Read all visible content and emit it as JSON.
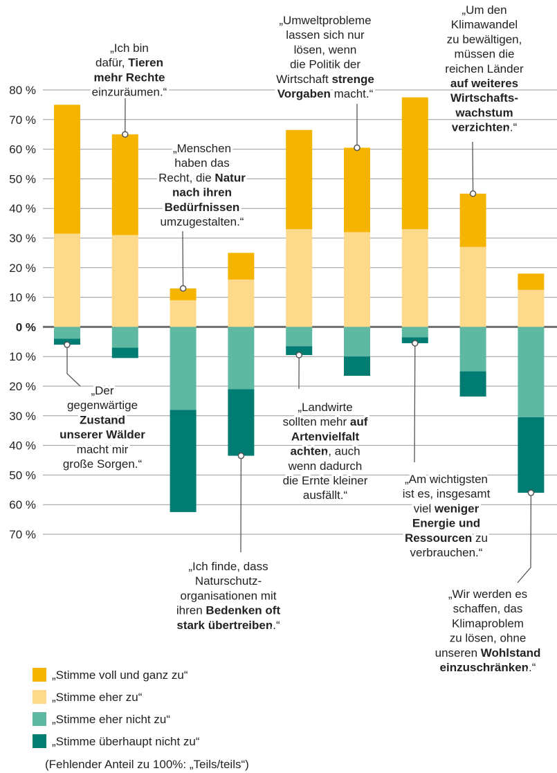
{
  "chart_data": {
    "type": "diverging-stacked-bar",
    "ylim": [
      -70,
      80
    ],
    "yticks": [
      {
        "value": 80,
        "label": "80 %"
      },
      {
        "value": 70,
        "label": "70 %"
      },
      {
        "value": 60,
        "label": "60 %"
      },
      {
        "value": 50,
        "label": "50 %"
      },
      {
        "value": 40,
        "label": "40 %"
      },
      {
        "value": 30,
        "label": "30 %"
      },
      {
        "value": 20,
        "label": "20 %"
      },
      {
        "value": 10,
        "label": "10 %"
      },
      {
        "value": 0,
        "label": "0 %"
      },
      {
        "value": -10,
        "label": "10 %"
      },
      {
        "value": -20,
        "label": "20 %"
      },
      {
        "value": -30,
        "label": "30 %"
      },
      {
        "value": -40,
        "label": "40 %"
      },
      {
        "value": -50,
        "label": "50 %"
      },
      {
        "value": -60,
        "label": "60 %"
      },
      {
        "value": -70,
        "label": "70 %"
      }
    ],
    "grid": true,
    "categories": [
      [
        [
          "„Der"
        ],
        [
          "gegenwärtige"
        ],
        [
          {
            "text": "Zustand",
            "bold": true
          }
        ],
        [
          {
            "text": "unserer Wälder",
            "bold": true
          }
        ],
        [
          "macht mir"
        ],
        [
          "große Sorgen.“"
        ]
      ],
      [
        [
          "„Ich bin"
        ],
        [
          "dafür, ",
          {
            "text": "Tieren",
            "bold": true
          }
        ],
        [
          {
            "text": "mehr Rechte",
            "bold": true
          }
        ],
        [
          "einzuräumen.“"
        ]
      ],
      [
        [
          "„Menschen"
        ],
        [
          "haben das"
        ],
        [
          "Recht, die ",
          {
            "text": "Natur",
            "bold": true
          }
        ],
        [
          {
            "text": "nach ihren",
            "bold": true
          }
        ],
        [
          {
            "text": "Bedürfnissen",
            "bold": true
          }
        ],
        [
          "umzugestalten.“"
        ]
      ],
      [
        [
          "„Ich finde, dass"
        ],
        [
          "Naturschutz-"
        ],
        [
          "organisationen mit"
        ],
        [
          "ihren ",
          {
            "text": "Bedenken oft",
            "bold": true
          }
        ],
        [
          {
            "text": "stark übertreiben",
            "bold": true
          },
          ".“"
        ]
      ],
      [
        [
          "„Landwirte"
        ],
        [
          "sollten mehr ",
          {
            "text": "auf",
            "bold": true
          }
        ],
        [
          {
            "text": "Artenvielfalt",
            "bold": true
          }
        ],
        [
          {
            "text": "achten",
            "bold": true
          },
          ", auch"
        ],
        [
          "wenn dadurch"
        ],
        [
          "die Ernte kleiner"
        ],
        [
          "ausfällt.“"
        ]
      ],
      [
        [
          "„Umweltprobleme"
        ],
        [
          "lassen sich nur"
        ],
        [
          "lösen, wenn"
        ],
        [
          "die Politik der"
        ],
        [
          "Wirtschaft ",
          {
            "text": "strenge",
            "bold": true
          }
        ],
        [
          {
            "text": "Vorgaben",
            "bold": true
          },
          " macht.“"
        ]
      ],
      [
        [
          "„Am wichtigsten"
        ],
        [
          "ist es, insgesamt"
        ],
        [
          "viel ",
          {
            "text": "weniger",
            "bold": true
          }
        ],
        [
          {
            "text": "Energie und",
            "bold": true
          }
        ],
        [
          {
            "text": "Ressourcen",
            "bold": true
          },
          " zu"
        ],
        [
          "verbrauchen.“"
        ]
      ],
      [
        [
          "„Um den"
        ],
        [
          "Klimawandel"
        ],
        [
          "zu bewältigen,"
        ],
        [
          "müssen die"
        ],
        [
          "reichen Länder"
        ],
        [
          {
            "text": "auf weiteres",
            "bold": true
          }
        ],
        [
          {
            "text": "Wirtschafts-",
            "bold": true
          }
        ],
        [
          {
            "text": "wachstum",
            "bold": true
          }
        ],
        [
          {
            "text": "verzichten",
            "bold": true
          },
          ".“"
        ]
      ],
      [
        [
          "„Wir werden es"
        ],
        [
          "schaffen, das"
        ],
        [
          "Klimaproblem"
        ],
        [
          "zu lösen, ohne"
        ],
        [
          "unseren ",
          {
            "text": "Wohlstand",
            "bold": true
          }
        ],
        [
          {
            "text": "einzuschränken",
            "bold": true
          },
          ".“"
        ]
      ]
    ],
    "series": [
      {
        "name": "„Stimme voll und ganz zu“",
        "color": "#f5b400",
        "values": [
          43.5,
          34,
          4,
          9,
          33.5,
          28.5,
          44.5,
          18,
          5.5
        ]
      },
      {
        "name": "„Stimme eher zu“",
        "color": "#fdd98c",
        "values": [
          31.5,
          31,
          9,
          16,
          33,
          32,
          33,
          27,
          12.5
        ]
      },
      {
        "name": "„Stimme eher nicht zu“",
        "color": "#5fb9a2",
        "values": [
          -4,
          -7,
          -28,
          -21,
          -6.5,
          -10,
          -3.5,
          -15,
          -30.5
        ]
      },
      {
        "name": "„Stimme überhaupt nicht zu“",
        "color": "#007c72",
        "values": [
          -2,
          -3.5,
          -34.5,
          -22.5,
          -3,
          -6.5,
          -2,
          -8.5,
          -25.5
        ]
      }
    ],
    "note": "(Fehlender Anteil zu 100%: „Teils/teils“)"
  }
}
